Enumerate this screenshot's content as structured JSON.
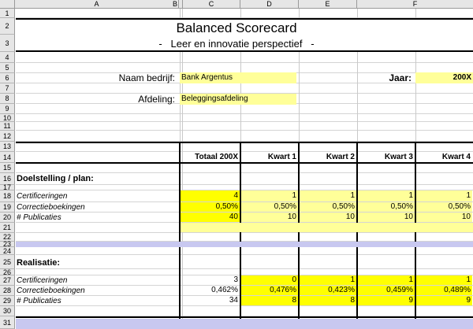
{
  "columns": [
    "A",
    "B",
    "C",
    "D",
    "E",
    "F"
  ],
  "rows": [
    "1",
    "2",
    "3",
    "4",
    "5",
    "6",
    "7",
    "8",
    "9",
    "10",
    "11",
    "12",
    "13",
    "14",
    "15",
    "16",
    "17",
    "18",
    "19",
    "20",
    "21",
    "22",
    "23",
    "24",
    "25",
    "26",
    "27",
    "28",
    "29",
    "30",
    "31"
  ],
  "title": "Balanced Scorecard",
  "subtitle": "-   Leer en innovatie perspectief   -",
  "company_label": "Naam bedrijf:",
  "company_value": "Bank Argentus",
  "year_label": "Jaar:",
  "year_value": "200X",
  "dept_label": "Afdeling:",
  "dept_value": "Beleggingsafdeling",
  "table_headers": [
    "Totaal 200X",
    "Kwart 1",
    "Kwart 2",
    "Kwart 3",
    "Kwart 4"
  ],
  "section_plan": "Doelstelling / plan:",
  "section_real": "Realisatie:",
  "plan": [
    {
      "label": "Certificeringen",
      "values": [
        "4",
        "1",
        "1",
        "1",
        "1"
      ]
    },
    {
      "label": "Correctieboekingen",
      "values": [
        "0,50%",
        "0,50%",
        "0,50%",
        "0,50%",
        "0,50%"
      ]
    },
    {
      "label": "# Publicaties",
      "values": [
        "40",
        "10",
        "10",
        "10",
        "10"
      ]
    }
  ],
  "real": [
    {
      "label": "Certificeringen",
      "values": [
        "3",
        "0",
        "1",
        "1",
        "1"
      ]
    },
    {
      "label": "Correctieboekingen",
      "values": [
        "0,462%",
        "0,476%",
        "0,423%",
        "0,459%",
        "0,489%"
      ]
    },
    {
      "label": "# Publicaties",
      "values": [
        "34",
        "8",
        "8",
        "9",
        "9"
      ]
    }
  ],
  "colors": {
    "light_yellow": "#ffff99",
    "bright_yellow": "#ffff00",
    "lavender": "#c8c8f0",
    "header_gray": "#e6e6e6"
  }
}
